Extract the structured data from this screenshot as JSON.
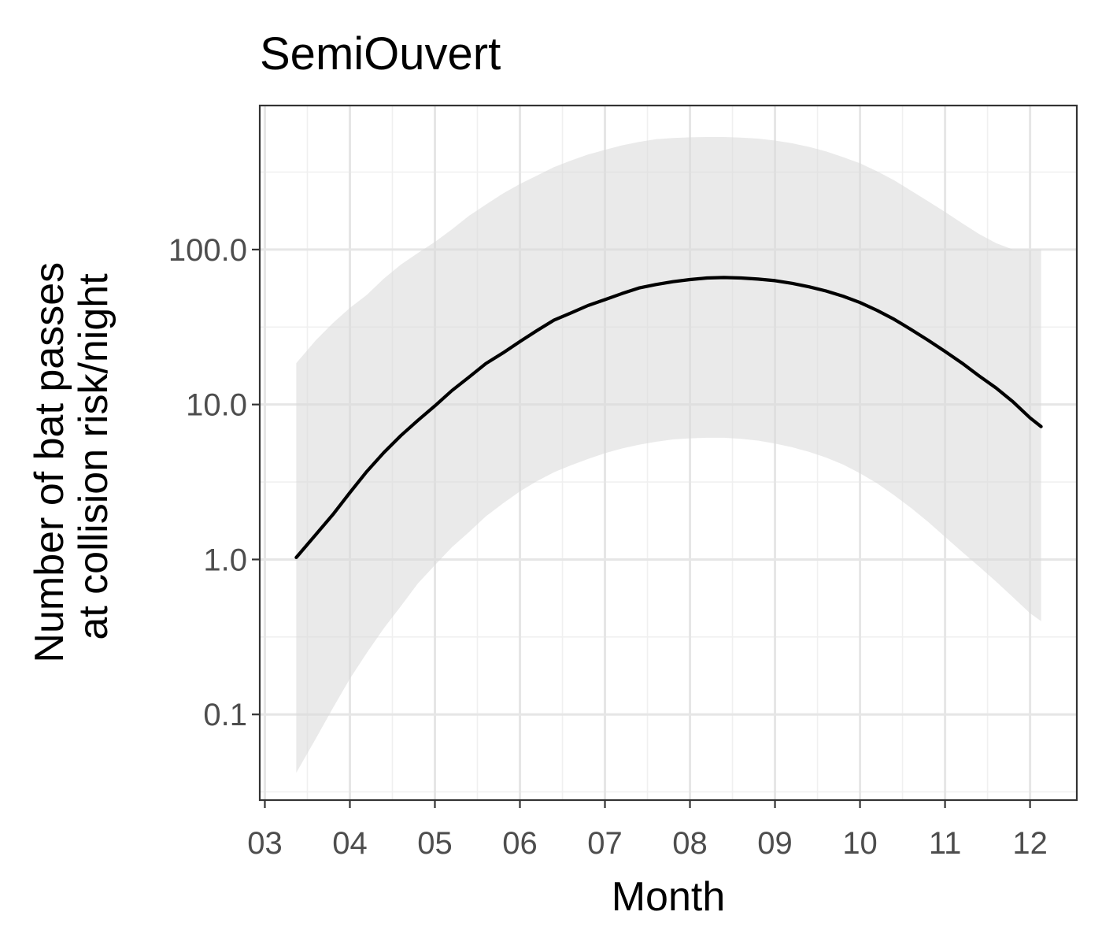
{
  "chart_data": {
    "type": "line",
    "title": "SemiOuvert",
    "xlabel": "Month",
    "ylabel_lines": [
      "Number of bat passes",
      "at collision risk/night"
    ],
    "y_scale": "log10",
    "x_ticks": [
      {
        "value": 3,
        "label": "03"
      },
      {
        "value": 4,
        "label": "04"
      },
      {
        "value": 5,
        "label": "05"
      },
      {
        "value": 6,
        "label": "06"
      },
      {
        "value": 7,
        "label": "07"
      },
      {
        "value": 8,
        "label": "08"
      },
      {
        "value": 9,
        "label": "09"
      },
      {
        "value": 10,
        "label": "10"
      },
      {
        "value": 11,
        "label": "11"
      },
      {
        "value": 12,
        "label": "12"
      }
    ],
    "y_ticks": [
      {
        "value": 0.1,
        "label": "0.1"
      },
      {
        "value": 1,
        "label": "1.0"
      },
      {
        "value": 10,
        "label": "10.0"
      },
      {
        "value": 100,
        "label": "100.0"
      }
    ],
    "xlim": [
      2.94,
      12.55
    ],
    "ylim": [
      0.028,
      850
    ],
    "grid": true,
    "series": [
      {
        "x": [
          3.37,
          3.6,
          3.8,
          4.0,
          4.2,
          4.4,
          4.6,
          4.8,
          5.0,
          5.2,
          5.4,
          5.6,
          5.8,
          6.0,
          6.2,
          6.4,
          6.6,
          6.8,
          7.0,
          7.2,
          7.4,
          7.6,
          7.8,
          8.0,
          8.2,
          8.4,
          8.6,
          8.8,
          9.0,
          9.2,
          9.4,
          9.6,
          9.8,
          10.0,
          10.2,
          10.4,
          10.6,
          10.8,
          11.0,
          11.2,
          11.4,
          11.6,
          11.8,
          12.0,
          12.13
        ],
        "y": [
          1.03,
          1.45,
          1.95,
          2.7,
          3.7,
          4.9,
          6.3,
          7.9,
          9.8,
          12.3,
          15.0,
          18.4,
          21.5,
          25.5,
          30.0,
          35.0,
          39.0,
          43.5,
          47.5,
          52.0,
          56.5,
          59.5,
          62.0,
          64.0,
          65.5,
          66.0,
          65.5,
          64.5,
          63.0,
          60.5,
          57.5,
          54.0,
          50.0,
          45.5,
          40.5,
          35.5,
          30.5,
          26.0,
          22.0,
          18.5,
          15.3,
          12.8,
          10.4,
          8.2,
          7.2
        ],
        "lower": [
          0.042,
          0.07,
          0.11,
          0.17,
          0.25,
          0.36,
          0.5,
          0.7,
          0.92,
          1.2,
          1.5,
          1.9,
          2.3,
          2.75,
          3.2,
          3.65,
          4.05,
          4.45,
          4.85,
          5.2,
          5.5,
          5.75,
          5.95,
          6.05,
          6.1,
          6.1,
          6.0,
          5.85,
          5.6,
          5.3,
          4.95,
          4.55,
          4.1,
          3.6,
          3.1,
          2.6,
          2.15,
          1.75,
          1.4,
          1.12,
          0.9,
          0.72,
          0.57,
          0.45,
          0.4
        ],
        "upper": [
          18.5,
          26.0,
          33.5,
          42.0,
          51.0,
          65.0,
          80.0,
          95.0,
          112.0,
          135.0,
          165.0,
          195.0,
          230.0,
          265.0,
          300.0,
          340.0,
          375.0,
          410.0,
          440.0,
          470.0,
          495.0,
          515.0,
          525.0,
          530.0,
          532.0,
          532.0,
          528.0,
          520.0,
          505.0,
          485.0,
          460.0,
          430.0,
          395.0,
          360.0,
          320.0,
          280.0,
          240.0,
          205.0,
          175.0,
          148.0,
          126.0,
          110.0,
          100.0,
          100.0,
          100.0
        ]
      }
    ],
    "colors": {
      "line": "#000000",
      "band": "#d9d9d9",
      "grid_major": "#e6e6e6",
      "grid_minor": "#f0f0f0",
      "panel_border": "#333333",
      "tick_text": "#4d4d4d"
    }
  }
}
